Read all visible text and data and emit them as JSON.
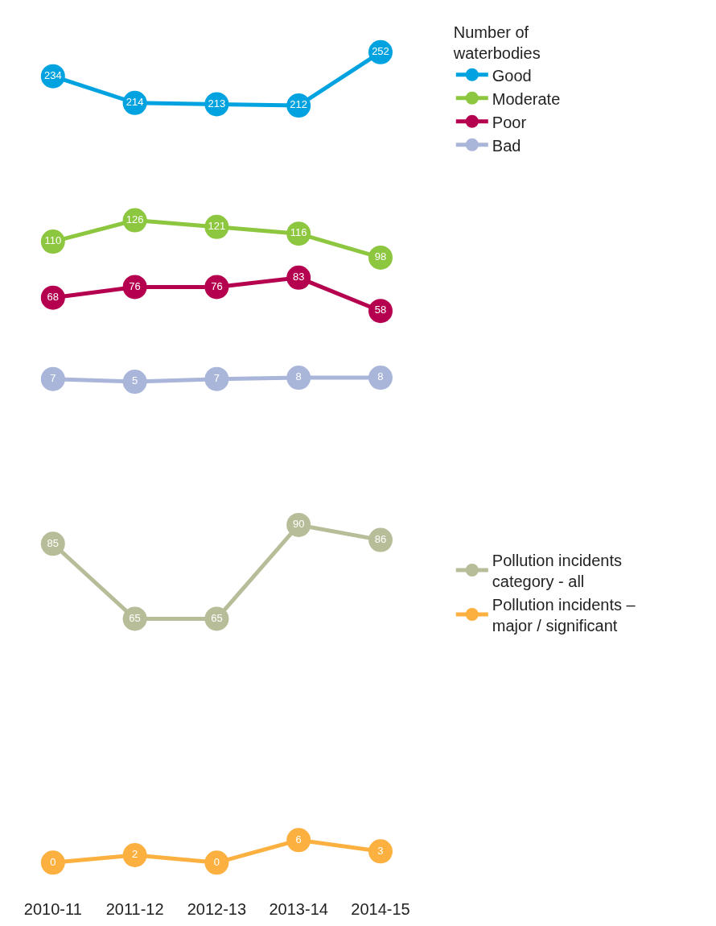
{
  "chart_data": [
    {
      "type": "line",
      "legend_title": "Number of waterbodies",
      "categories": [
        "2010-11",
        "2011-12",
        "2012-13",
        "2013-14",
        "2014-15"
      ],
      "tick_labels": false,
      "legend": "right",
      "marker": "circle",
      "line_style": "solid",
      "data_labels": true,
      "series": [
        {
          "name": "Good",
          "color": "#00a3e0",
          "values": [
            234,
            214,
            213,
            212,
            252
          ]
        },
        {
          "name": "Moderate",
          "color": "#8dc63f",
          "values": [
            110,
            126,
            121,
            116,
            98
          ]
        },
        {
          "name": "Poor",
          "color": "#b5004f",
          "values": [
            68,
            76,
            76,
            83,
            58
          ]
        },
        {
          "name": "Bad",
          "color": "#a9b6da",
          "values": [
            7,
            5,
            7,
            8,
            8
          ]
        }
      ]
    },
    {
      "type": "line",
      "categories": [
        "2010-11",
        "2011-12",
        "2012-13",
        "2013-14",
        "2014-15"
      ],
      "tick_labels": "x",
      "legend": "right",
      "marker": "circle",
      "line_style": "solid",
      "data_labels": true,
      "series": [
        {
          "name": "Pollution incidents category - all",
          "color": "#b6bd98",
          "values": [
            85,
            65,
            65,
            90,
            86
          ]
        },
        {
          "name": "Pollution incidents – major / significant",
          "color": "#fbb040",
          "values": [
            0,
            2,
            0,
            6,
            3
          ]
        }
      ]
    }
  ]
}
